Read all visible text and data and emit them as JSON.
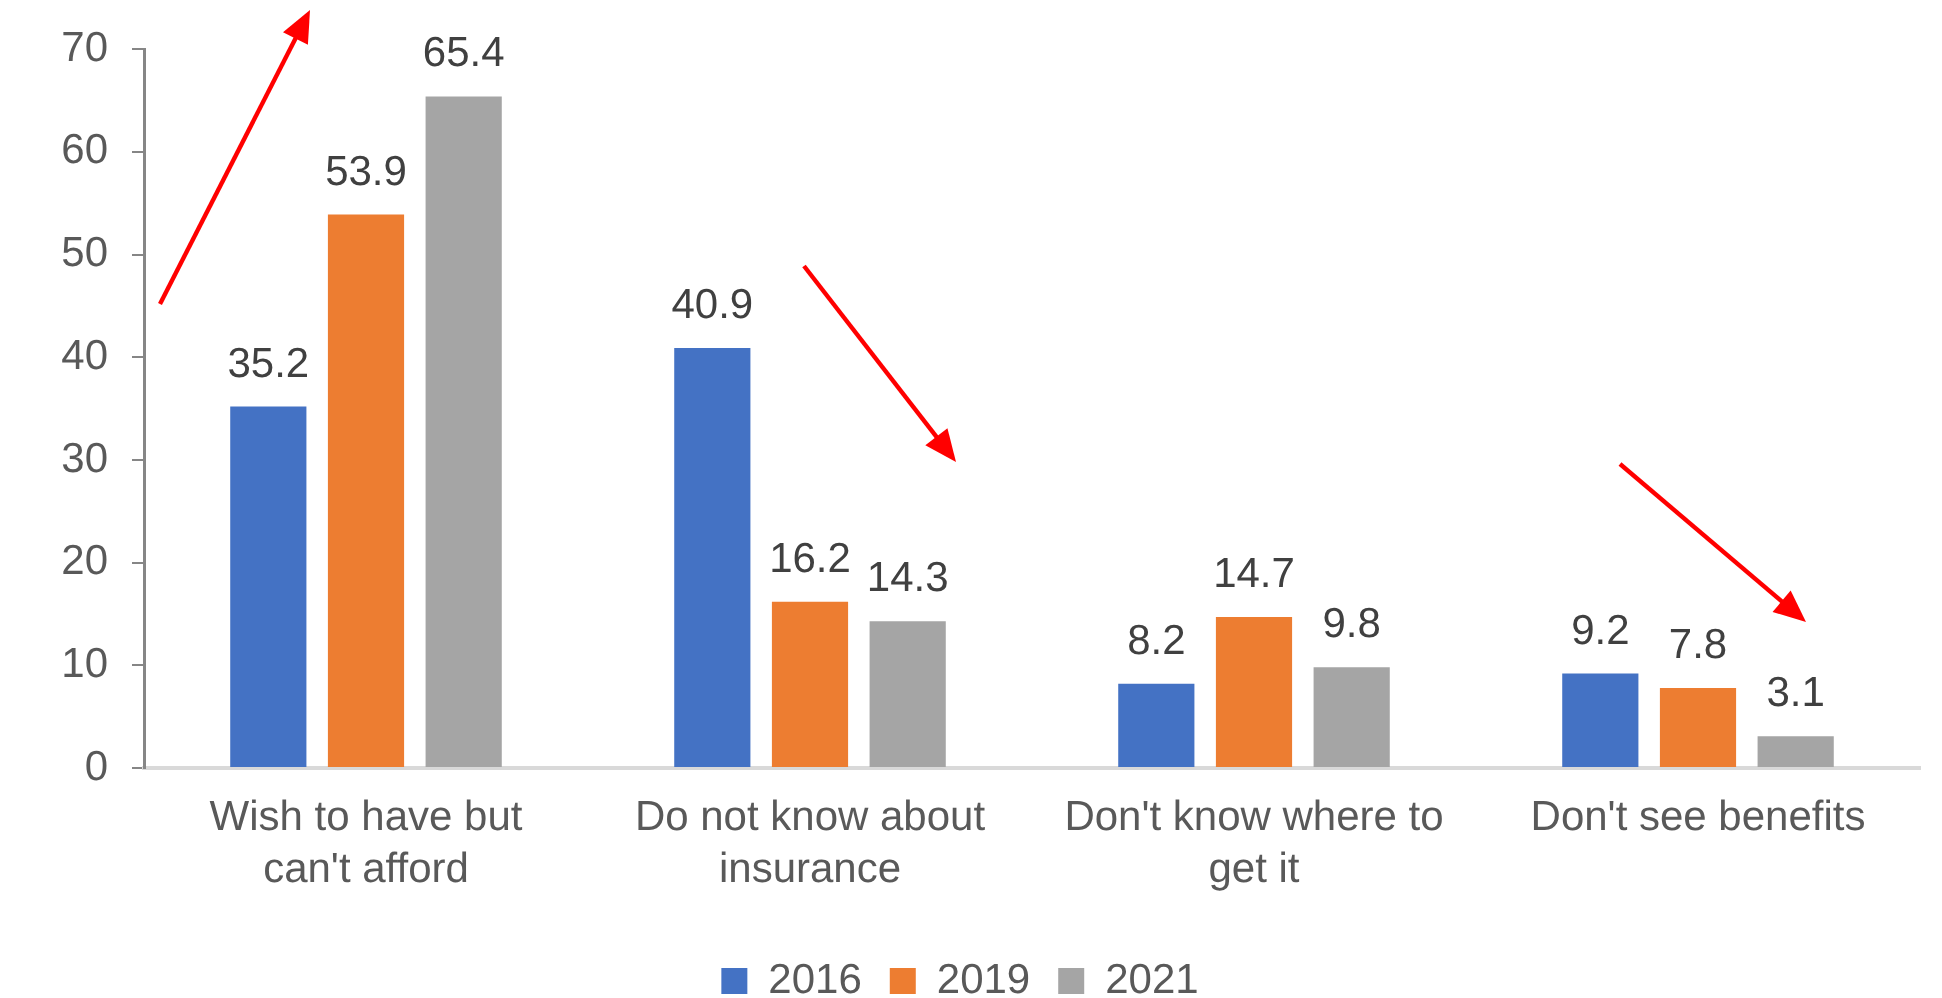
{
  "chart_data": {
    "type": "bar",
    "categories": [
      "Wish to have but can't afford",
      "Do not know about insurance",
      "Don't know where to get it",
      "Don't see benefits"
    ],
    "series": [
      {
        "name": "2016",
        "color": "#4472c4",
        "values": [
          35.2,
          40.9,
          8.2,
          9.2
        ]
      },
      {
        "name": "2019",
        "color": "#ed7d31",
        "values": [
          53.9,
          16.2,
          14.7,
          7.8
        ]
      },
      {
        "name": "2021",
        "color": "#a5a5a5",
        "values": [
          65.4,
          14.3,
          9.8,
          3.1
        ]
      }
    ],
    "ylim": [
      0,
      70
    ],
    "yticks": [
      0,
      10,
      20,
      30,
      40,
      50,
      60,
      70
    ],
    "grid": false,
    "legend": "bottom",
    "data_labels": true
  }
}
